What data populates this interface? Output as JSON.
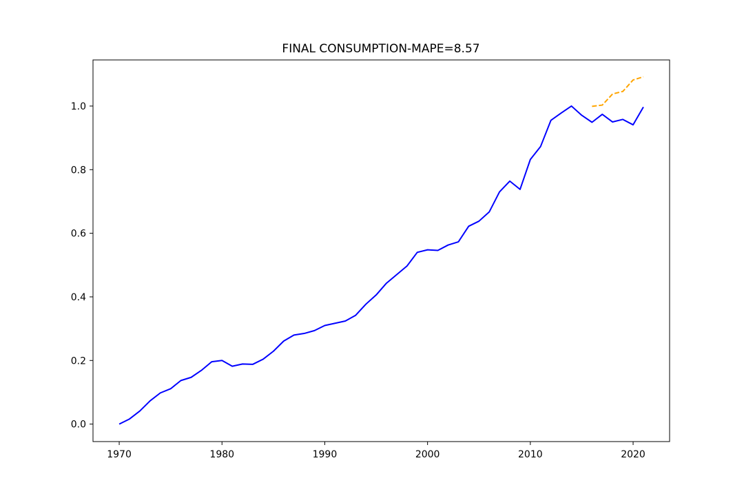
{
  "chart_data": {
    "type": "line",
    "title": "FINAL CONSUMPTION-MAPE=8.57",
    "xlabel": "",
    "ylabel": "",
    "xlim": [
      1967.45,
      2023.55
    ],
    "ylim": [
      -0.055,
      1.145
    ],
    "x_ticks": [
      1970,
      1980,
      1990,
      2000,
      2010,
      2020
    ],
    "y_ticks": [
      "0.0",
      "0.2",
      "0.4",
      "0.6",
      "0.8",
      "1.0"
    ],
    "grid": false,
    "legend": "none",
    "series": [
      {
        "color": "#0000ff",
        "style": "solid",
        "x": [
          1970,
          1971,
          1972,
          1973,
          1974,
          1975,
          1976,
          1977,
          1978,
          1979,
          1980,
          1981,
          1982,
          1983,
          1984,
          1985,
          1986,
          1987,
          1988,
          1989,
          1990,
          1991,
          1992,
          1993,
          1994,
          1995,
          1996,
          1997,
          1998,
          1999,
          2000,
          2001,
          2002,
          2003,
          2004,
          2005,
          2006,
          2007,
          2008,
          2009,
          2010,
          2011,
          2012,
          2013,
          2014,
          2015,
          2016,
          2017,
          2018,
          2019,
          2020,
          2021
        ],
        "values": [
          0.0,
          0.016,
          0.041,
          0.073,
          0.098,
          0.111,
          0.137,
          0.147,
          0.169,
          0.196,
          0.2,
          0.182,
          0.189,
          0.188,
          0.204,
          0.229,
          0.261,
          0.28,
          0.285,
          0.294,
          0.31,
          0.317,
          0.324,
          0.342,
          0.377,
          0.406,
          0.443,
          0.47,
          0.497,
          0.54,
          0.548,
          0.546,
          0.563,
          0.573,
          0.622,
          0.638,
          0.667,
          0.73,
          0.764,
          0.738,
          0.832,
          0.873,
          0.955,
          0.978,
          1.0,
          0.971,
          0.949,
          0.974,
          0.95,
          0.958,
          0.941,
          0.997
        ]
      },
      {
        "color": "#ffa500",
        "style": "dashed",
        "x": [
          2016,
          2017,
          2018,
          2019,
          2020,
          2021
        ],
        "values": [
          0.999,
          1.003,
          1.038,
          1.046,
          1.082,
          1.092
        ]
      }
    ]
  }
}
